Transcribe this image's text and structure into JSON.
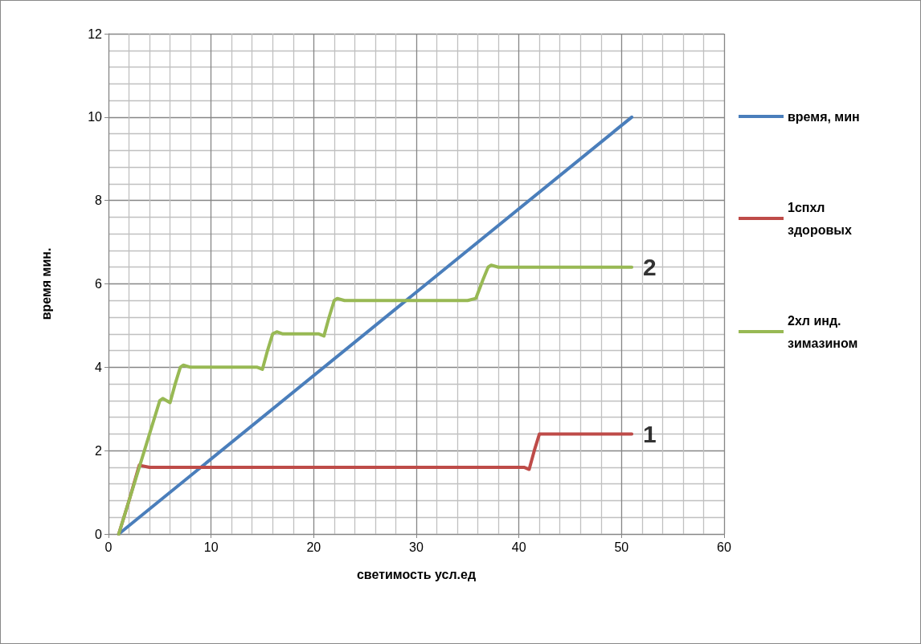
{
  "chart_data": {
    "type": "line",
    "xlabel": "светимость усл.ед",
    "ylabel": "время мин.",
    "xlim": [
      0,
      60
    ],
    "xticks": [
      0,
      10,
      20,
      30,
      40,
      50,
      60
    ],
    "ylim": [
      0,
      12
    ],
    "yticks": [
      0,
      2,
      4,
      6,
      8,
      10,
      12
    ],
    "grid": true,
    "legend": "right",
    "marker": "none",
    "line_style": "solid",
    "series": [
      {
        "name": "время, мин",
        "color": "#4a7ebb",
        "x": [
          1,
          51
        ],
        "values": [
          0,
          10
        ]
      },
      {
        "name": "1спхл здоровых",
        "color": "#be4b48",
        "x": [
          1,
          2,
          3,
          4,
          10,
          20,
          30,
          40,
          40.5,
          41,
          41.5,
          42,
          43,
          51
        ],
        "values": [
          0,
          0.8,
          1.65,
          1.6,
          1.6,
          1.6,
          1.6,
          1.6,
          1.6,
          1.55,
          2,
          2.4,
          2.4,
          2.4
        ]
      },
      {
        "name": "2хл инд. зимазином",
        "color": "#98b954",
        "x": [
          1,
          2,
          3,
          4,
          5,
          5.3,
          6,
          6.5,
          7,
          7.3,
          8,
          10,
          14,
          14.5,
          15,
          15.5,
          16,
          16.4,
          17,
          20,
          20.5,
          21,
          21.5,
          22,
          22.3,
          23,
          30,
          35,
          35.8,
          36.5,
          37,
          37.3,
          38,
          45,
          51
        ],
        "values": [
          0,
          0.8,
          1.6,
          2.4,
          3.2,
          3.25,
          3.15,
          3.6,
          4.0,
          4.05,
          4.0,
          4.0,
          4.0,
          4.0,
          3.95,
          4.4,
          4.8,
          4.85,
          4.8,
          4.8,
          4.8,
          4.75,
          5.2,
          5.6,
          5.65,
          5.6,
          5.6,
          5.6,
          5.65,
          6.1,
          6.4,
          6.45,
          6.4,
          6.4,
          6.4
        ]
      }
    ],
    "annotations": [
      {
        "text": "2",
        "x": 51,
        "y": 6.4
      },
      {
        "text": "1",
        "x": 51,
        "y": 2.4
      }
    ]
  }
}
